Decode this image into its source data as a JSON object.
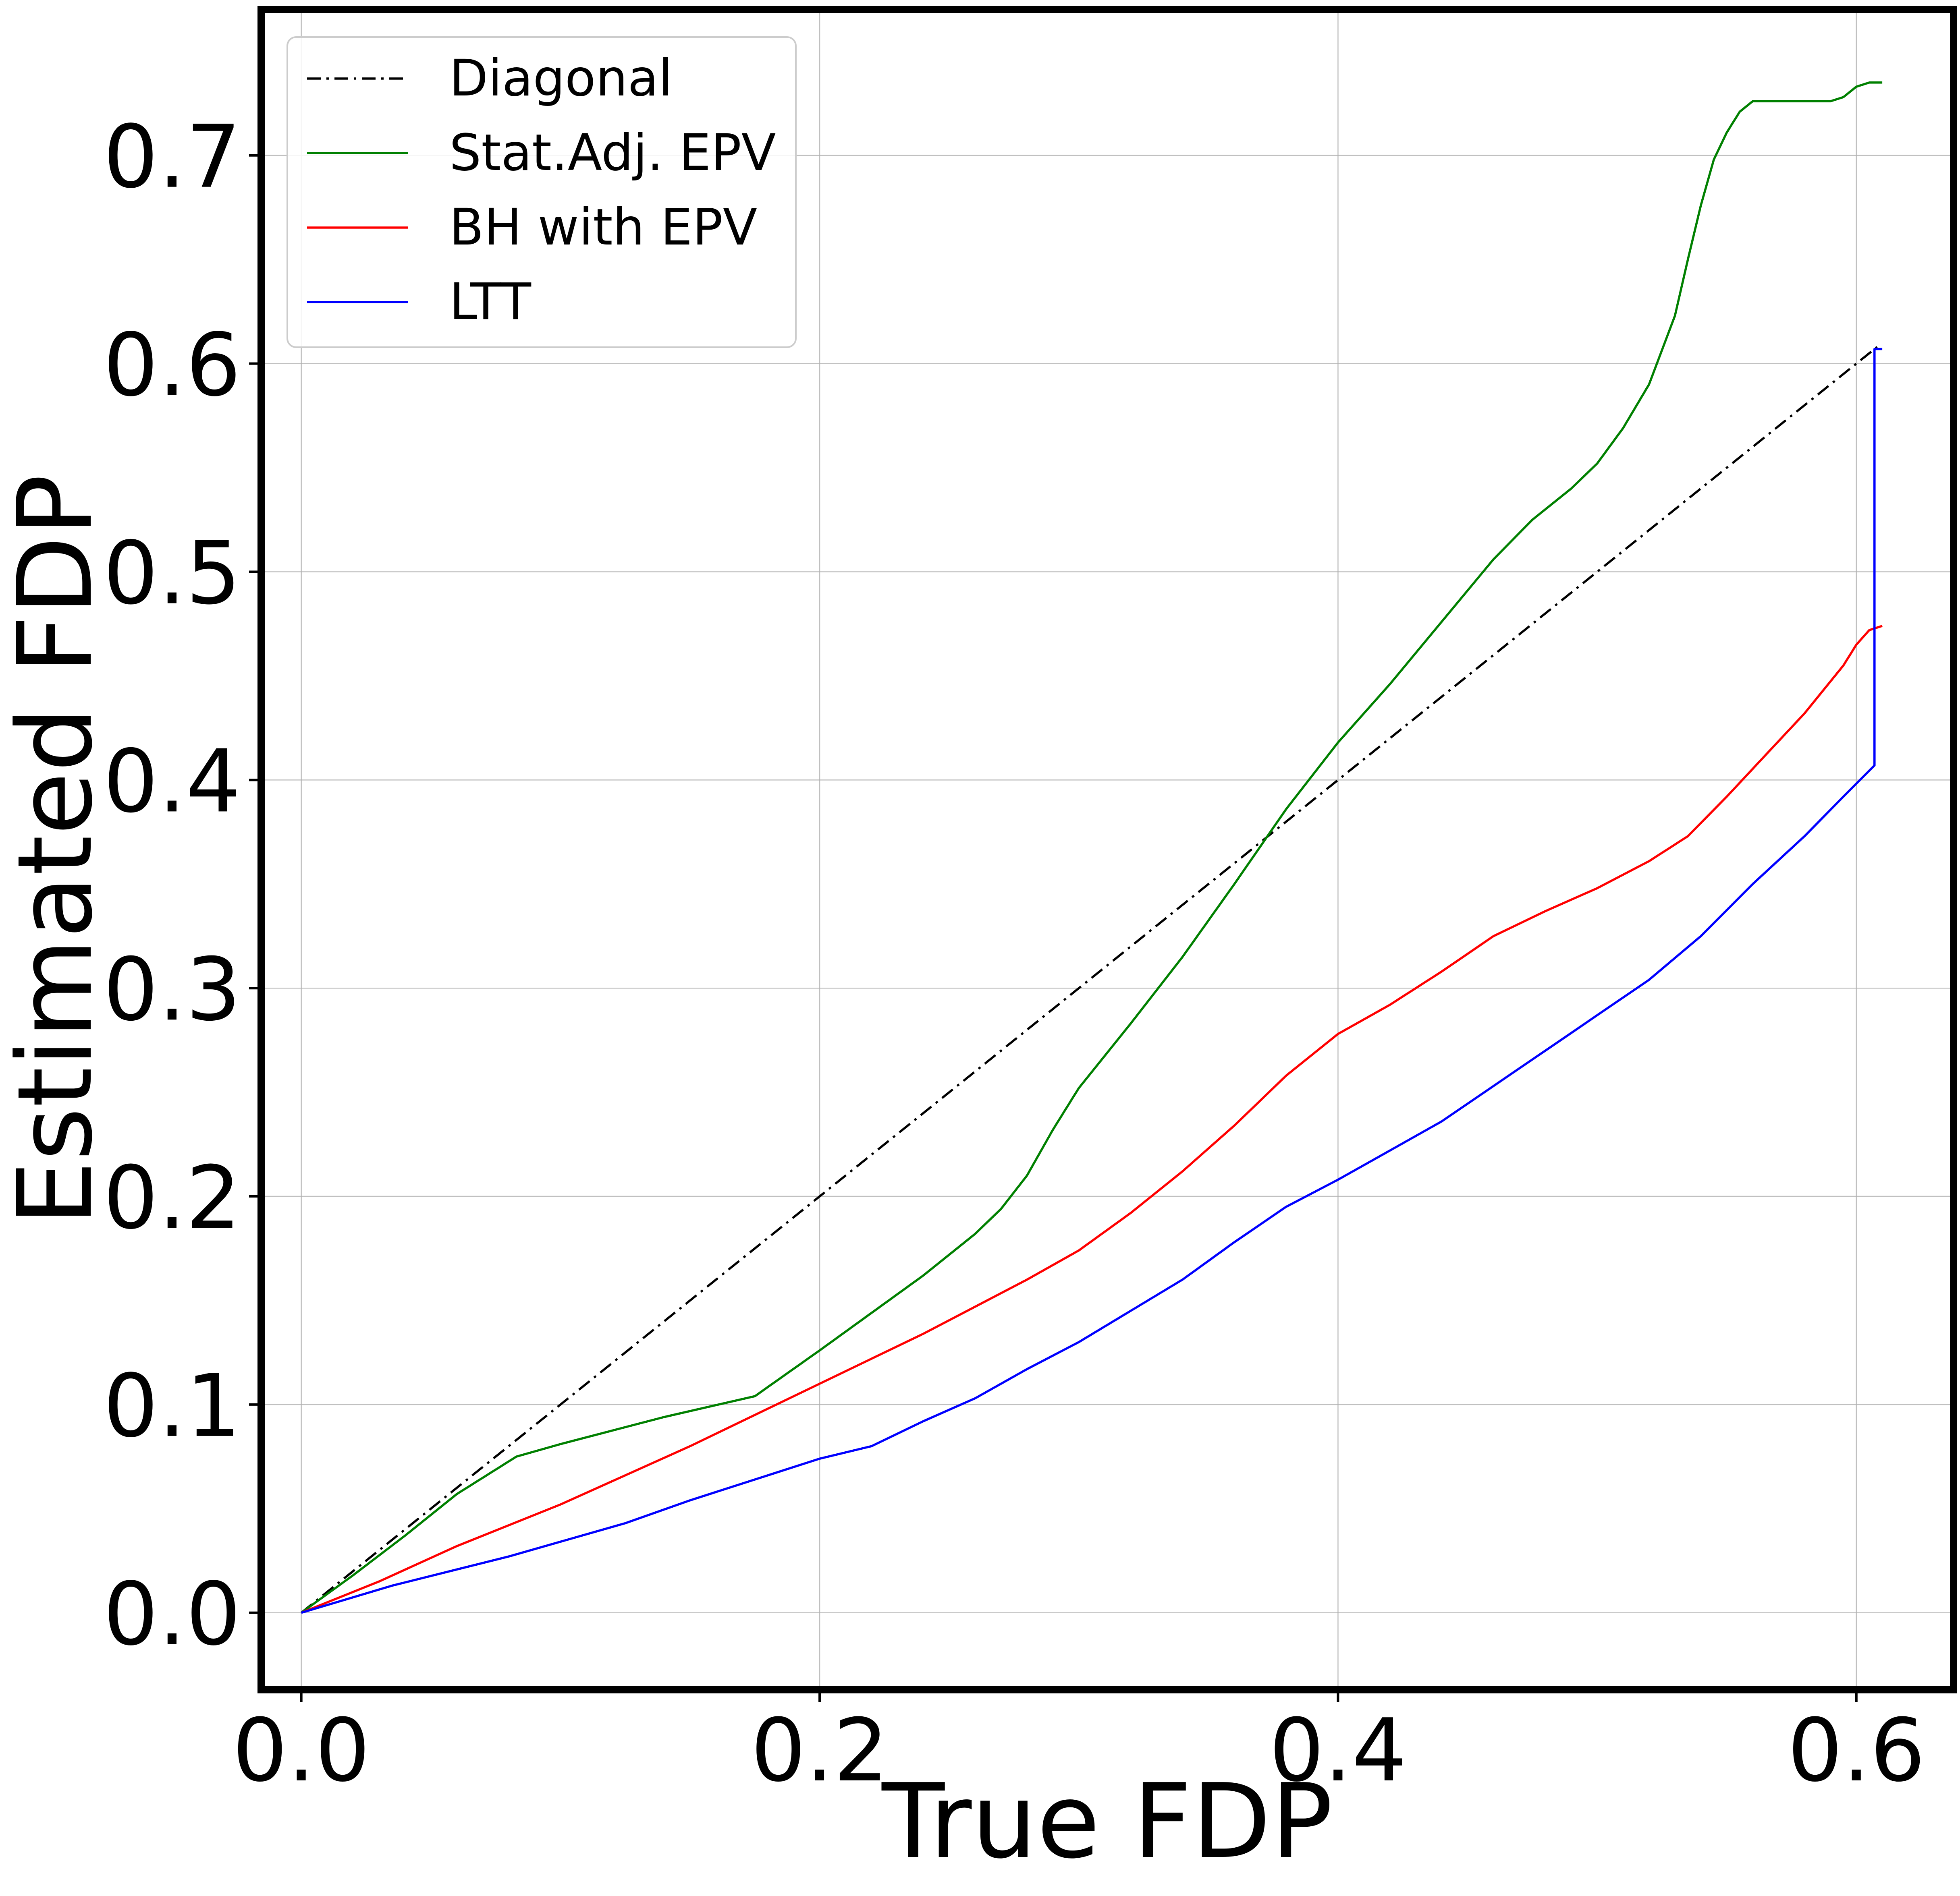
{
  "colors": {
    "diagonal": "#000000",
    "stat_adj_epv": "#008000",
    "bh_with_epv": "#ff0000",
    "ltt": "#0000ff",
    "grid": "#b0b0b0",
    "frame": "#000000"
  },
  "chart_data": {
    "type": "line",
    "title": "",
    "xlabel": "True FDP",
    "ylabel": "Estimated FDP",
    "xlim": [
      -0.0155,
      0.6375
    ],
    "ylim": [
      -0.037,
      0.77
    ],
    "xticks": [
      {
        "value": 0.0,
        "label": "0.0"
      },
      {
        "value": 0.2,
        "label": "0.2"
      },
      {
        "value": 0.4,
        "label": "0.4"
      },
      {
        "value": 0.6,
        "label": "0.6"
      }
    ],
    "yticks": [
      {
        "value": 0.0,
        "label": "0.0"
      },
      {
        "value": 0.1,
        "label": "0.1"
      },
      {
        "value": 0.2,
        "label": "0.2"
      },
      {
        "value": 0.3,
        "label": "0.3"
      },
      {
        "value": 0.4,
        "label": "0.4"
      },
      {
        "value": 0.5,
        "label": "0.5"
      },
      {
        "value": 0.6,
        "label": "0.6"
      },
      {
        "value": 0.7,
        "label": "0.7"
      }
    ],
    "grid": true,
    "legend_position": "top-left",
    "series": [
      {
        "name": "Diagonal",
        "color_key": "diagonal",
        "style": "dashdot",
        "points": [
          [
            0.0,
            0.0
          ],
          [
            0.608,
            0.608
          ]
        ]
      },
      {
        "name": "Stat.Adj. EPV",
        "color_key": "stat_adj_epv",
        "style": "solid",
        "points": [
          [
            0.0,
            0.0
          ],
          [
            0.02,
            0.018
          ],
          [
            0.04,
            0.037
          ],
          [
            0.06,
            0.057
          ],
          [
            0.083,
            0.075
          ],
          [
            0.1,
            0.081
          ],
          [
            0.14,
            0.094
          ],
          [
            0.175,
            0.104
          ],
          [
            0.2,
            0.126
          ],
          [
            0.22,
            0.144
          ],
          [
            0.24,
            0.162
          ],
          [
            0.26,
            0.182
          ],
          [
            0.27,
            0.194
          ],
          [
            0.28,
            0.21
          ],
          [
            0.29,
            0.232
          ],
          [
            0.3,
            0.252
          ],
          [
            0.32,
            0.283
          ],
          [
            0.34,
            0.315
          ],
          [
            0.36,
            0.35
          ],
          [
            0.38,
            0.386
          ],
          [
            0.4,
            0.418
          ],
          [
            0.42,
            0.446
          ],
          [
            0.44,
            0.476
          ],
          [
            0.46,
            0.506
          ],
          [
            0.475,
            0.525
          ],
          [
            0.49,
            0.54
          ],
          [
            0.5,
            0.552
          ],
          [
            0.51,
            0.569
          ],
          [
            0.52,
            0.59
          ],
          [
            0.53,
            0.623
          ],
          [
            0.535,
            0.65
          ],
          [
            0.54,
            0.676
          ],
          [
            0.545,
            0.698
          ],
          [
            0.55,
            0.711
          ],
          [
            0.555,
            0.721
          ],
          [
            0.56,
            0.726
          ],
          [
            0.59,
            0.726
          ],
          [
            0.595,
            0.728
          ],
          [
            0.6,
            0.733
          ],
          [
            0.605,
            0.735
          ],
          [
            0.61,
            0.735
          ]
        ]
      },
      {
        "name": "BH with EPV",
        "color_key": "bh_with_epv",
        "style": "solid",
        "points": [
          [
            0.0,
            0.0
          ],
          [
            0.03,
            0.015
          ],
          [
            0.06,
            0.032
          ],
          [
            0.1,
            0.052
          ],
          [
            0.15,
            0.08
          ],
          [
            0.2,
            0.11
          ],
          [
            0.24,
            0.134
          ],
          [
            0.28,
            0.16
          ],
          [
            0.3,
            0.174
          ],
          [
            0.32,
            0.192
          ],
          [
            0.34,
            0.212
          ],
          [
            0.36,
            0.234
          ],
          [
            0.38,
            0.258
          ],
          [
            0.4,
            0.278
          ],
          [
            0.42,
            0.292
          ],
          [
            0.44,
            0.308
          ],
          [
            0.46,
            0.325
          ],
          [
            0.48,
            0.337
          ],
          [
            0.5,
            0.348
          ],
          [
            0.52,
            0.361
          ],
          [
            0.535,
            0.373
          ],
          [
            0.55,
            0.392
          ],
          [
            0.565,
            0.412
          ],
          [
            0.58,
            0.432
          ],
          [
            0.595,
            0.455
          ],
          [
            0.6,
            0.465
          ],
          [
            0.605,
            0.472
          ],
          [
            0.61,
            0.474
          ]
        ]
      },
      {
        "name": "LTT",
        "color_key": "ltt",
        "style": "solid",
        "points": [
          [
            0.0,
            0.0
          ],
          [
            0.035,
            0.013
          ],
          [
            0.08,
            0.027
          ],
          [
            0.125,
            0.043
          ],
          [
            0.15,
            0.054
          ],
          [
            0.2,
            0.074
          ],
          [
            0.22,
            0.08
          ],
          [
            0.24,
            0.092
          ],
          [
            0.26,
            0.103
          ],
          [
            0.28,
            0.117
          ],
          [
            0.3,
            0.13
          ],
          [
            0.32,
            0.145
          ],
          [
            0.34,
            0.16
          ],
          [
            0.36,
            0.178
          ],
          [
            0.38,
            0.195
          ],
          [
            0.4,
            0.208
          ],
          [
            0.42,
            0.222
          ],
          [
            0.44,
            0.236
          ],
          [
            0.46,
            0.253
          ],
          [
            0.48,
            0.27
          ],
          [
            0.5,
            0.287
          ],
          [
            0.52,
            0.304
          ],
          [
            0.54,
            0.325
          ],
          [
            0.56,
            0.35
          ],
          [
            0.58,
            0.373
          ],
          [
            0.595,
            0.392
          ],
          [
            0.607,
            0.407
          ],
          [
            0.607,
            0.607
          ],
          [
            0.61,
            0.607
          ]
        ]
      }
    ]
  }
}
